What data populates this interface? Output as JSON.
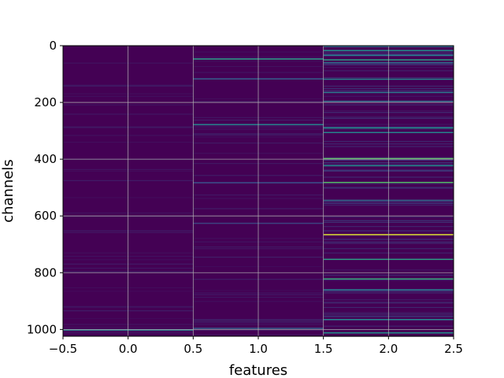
{
  "chart_data": {
    "type": "heatmap",
    "title": "",
    "xlabel": "features",
    "ylabel": "channels",
    "xlim": [
      -0.5,
      2.5
    ],
    "ylim": [
      1024,
      0
    ],
    "y_inverted": true,
    "grid": true,
    "colormap": "viridis",
    "background_color": "#440154",
    "columns": [
      0,
      1,
      2
    ],
    "rows": 1024,
    "xticks": [
      -0.5,
      0.0,
      0.5,
      1.0,
      1.5,
      2.0,
      2.5
    ],
    "xtick_labels": [
      "−0.5",
      "0.0",
      "0.5",
      "1.0",
      "1.5",
      "2.0",
      "2.5"
    ],
    "yticks": [
      0,
      200,
      400,
      600,
      800,
      1000
    ],
    "ytick_labels": [
      "0",
      "200",
      "400",
      "600",
      "800",
      "1000"
    ],
    "highlights": [
      {
        "feature": 0,
        "channel": 1002,
        "intensity": 0.45
      },
      {
        "feature": 1,
        "channel": 47,
        "intensity": 0.55
      },
      {
        "feature": 1,
        "channel": 117,
        "intensity": 0.3
      },
      {
        "feature": 1,
        "channel": 278,
        "intensity": 0.45
      },
      {
        "feature": 1,
        "channel": 483,
        "intensity": 0.25
      },
      {
        "feature": 1,
        "channel": 626,
        "intensity": 0.2
      },
      {
        "feature": 1,
        "channel": 996,
        "intensity": 0.3
      },
      {
        "feature": 2,
        "channel": 3,
        "intensity": 0.35
      },
      {
        "feature": 2,
        "channel": 17,
        "intensity": 0.5
      },
      {
        "feature": 2,
        "channel": 34,
        "intensity": 0.4
      },
      {
        "feature": 2,
        "channel": 50,
        "intensity": 0.55
      },
      {
        "feature": 2,
        "channel": 60,
        "intensity": 0.35
      },
      {
        "feature": 2,
        "channel": 118,
        "intensity": 0.45
      },
      {
        "feature": 2,
        "channel": 165,
        "intensity": 0.4
      },
      {
        "feature": 2,
        "channel": 196,
        "intensity": 0.35
      },
      {
        "feature": 2,
        "channel": 290,
        "intensity": 0.5
      },
      {
        "feature": 2,
        "channel": 306,
        "intensity": 0.45
      },
      {
        "feature": 2,
        "channel": 398,
        "intensity": 0.75
      },
      {
        "feature": 2,
        "channel": 423,
        "intensity": 0.5
      },
      {
        "feature": 2,
        "channel": 482,
        "intensity": 0.7
      },
      {
        "feature": 2,
        "channel": 545,
        "intensity": 0.35
      },
      {
        "feature": 2,
        "channel": 666,
        "intensity": 0.95
      },
      {
        "feature": 2,
        "channel": 753,
        "intensity": 0.55
      },
      {
        "feature": 2,
        "channel": 822,
        "intensity": 0.6
      },
      {
        "feature": 2,
        "channel": 860,
        "intensity": 0.4
      },
      {
        "feature": 2,
        "channel": 965,
        "intensity": 0.45
      },
      {
        "feature": 2,
        "channel": 1012,
        "intensity": 0.5
      }
    ]
  }
}
